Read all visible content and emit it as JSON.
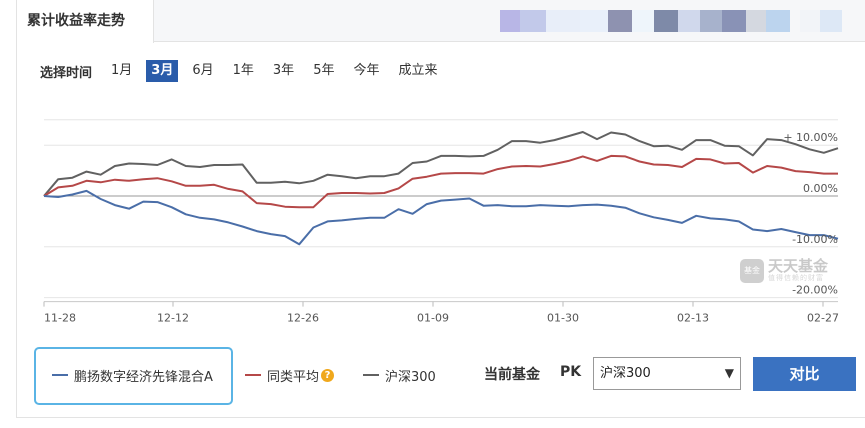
{
  "header": {
    "title": "累计收益率走势",
    "blurred_colors": [
      "#b8b6e6",
      "#c2c9ea",
      "#e8eef9",
      "#e9f0fa",
      "#8e92b0",
      "#eef5fb",
      "#7e8aa8",
      "#d0d8ec",
      "#a7b2cc",
      "#8992b6",
      "#d4d8e0",
      "#bcd4ee",
      "#f2f4f8",
      "#dde8f6"
    ]
  },
  "range_selector": {
    "label": "选择时间",
    "options": [
      "1月",
      "3月",
      "6月",
      "1年",
      "3年",
      "5年",
      "今年",
      "成立来"
    ],
    "selected": "3月"
  },
  "chart_data": {
    "type": "line",
    "x_ticks": [
      "11-28",
      "12-12",
      "12-26",
      "01-09",
      "01-30",
      "02-13",
      "02-27"
    ],
    "y_ticks": [
      "+ 10.00%",
      "0.00%",
      "-10.00%",
      "-20.00%"
    ],
    "y_tick_values": [
      10,
      0,
      -10,
      -20
    ],
    "ylim": [
      -21,
      15
    ],
    "series": [
      {
        "name": "沪深300",
        "color": "#616161",
        "values": [
          0,
          3.3,
          3.6,
          4.8,
          4.2,
          5.9,
          6.4,
          6.3,
          6.1,
          7.2,
          5.9,
          5.7,
          6.1,
          6.1,
          6.2,
          2.6,
          2.6,
          2.8,
          2.5,
          3.0,
          4.2,
          3.9,
          3.5,
          3.9,
          3.9,
          4.4,
          6.5,
          6.8,
          7.9,
          7.9,
          7.8,
          7.9,
          9.1,
          10.8,
          10.8,
          10.5,
          11.0,
          11.8,
          12.6,
          11.2,
          12.5,
          12.1,
          10.8,
          9.8,
          9.9,
          9.1,
          11.0,
          11.0,
          9.9,
          9.8,
          8.0,
          11.2,
          11.0,
          10.2,
          9.2,
          8.5,
          9.4
        ]
      },
      {
        "name": "同类平均",
        "color": "#b54848",
        "values": [
          0,
          1.7,
          2.0,
          3.0,
          2.7,
          3.2,
          3.0,
          3.3,
          3.5,
          2.9,
          2.0,
          2.0,
          2.2,
          1.4,
          0.9,
          -1.4,
          -1.6,
          -2.1,
          -2.2,
          -2.2,
          0.4,
          0.6,
          0.6,
          0.5,
          0.6,
          1.5,
          3.4,
          3.8,
          4.4,
          4.5,
          4.5,
          4.4,
          5.3,
          5.8,
          5.9,
          5.8,
          6.3,
          6.9,
          7.8,
          6.9,
          7.9,
          7.8,
          6.8,
          6.2,
          6.1,
          5.7,
          7.3,
          7.2,
          6.4,
          6.5,
          4.6,
          5.9,
          5.6,
          4.9,
          4.7,
          4.4,
          4.4
        ]
      },
      {
        "name": "鹏扬数字经济先锋混合A",
        "color": "#4a6ea8",
        "values": [
          0,
          -0.2,
          0.3,
          1.0,
          -0.6,
          -1.8,
          -2.5,
          -1.1,
          -1.2,
          -2.2,
          -3.6,
          -4.3,
          -4.6,
          -5.2,
          -6.0,
          -6.9,
          -7.5,
          -7.9,
          -9.5,
          -6.2,
          -5.0,
          -4.8,
          -4.5,
          -4.3,
          -4.3,
          -2.6,
          -3.5,
          -1.6,
          -0.9,
          -0.7,
          -0.5,
          -1.9,
          -1.8,
          -2.0,
          -2.0,
          -1.8,
          -1.9,
          -2.0,
          -1.8,
          -1.7,
          -1.9,
          -2.3,
          -3.4,
          -4.2,
          -4.7,
          -5.3,
          -3.9,
          -4.4,
          -4.6,
          -5.0,
          -6.6,
          -6.9,
          -6.5,
          -7.1,
          -7.7,
          -7.7,
          -8.4
        ]
      }
    ]
  },
  "legend": {
    "fund": {
      "label": "鹏扬数字经济先锋混合A",
      "color": "#4a6ea8"
    },
    "peer": {
      "label": "同类平均",
      "color": "#b54848"
    },
    "index": {
      "label": "沪深300",
      "color": "#616161"
    }
  },
  "compare": {
    "current_label": "当前基金",
    "pk_label": "PK",
    "select_value": "沪深300",
    "button_label": "对比"
  },
  "watermark": {
    "logo_text": "基金",
    "title": "天天基金",
    "subtitle": "值得信赖的财富"
  }
}
